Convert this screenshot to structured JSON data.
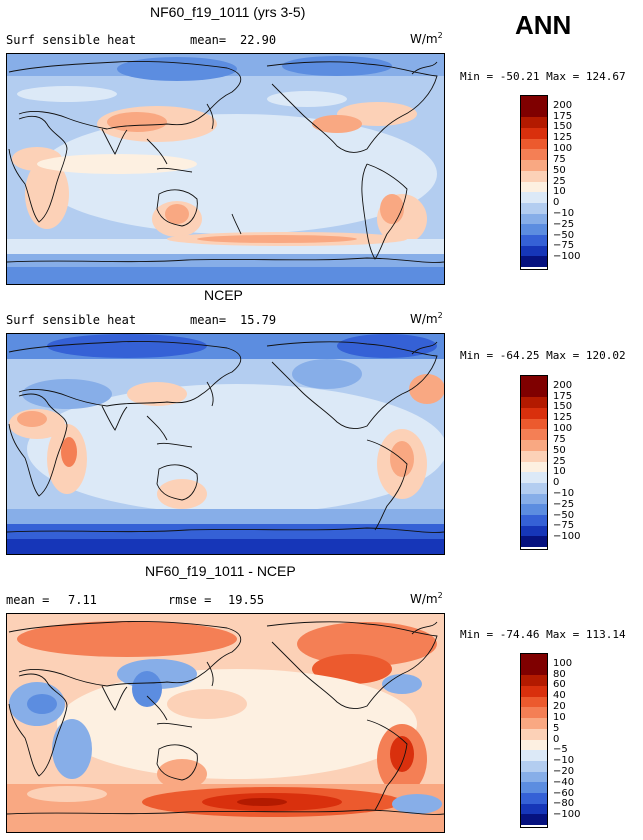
{
  "season": "ANN",
  "panels": [
    {
      "title": "NF60_f19_1011 (yrs 3-5)",
      "variable": "Surf sensible heat",
      "stat1_label": "mean=",
      "stat1_value": "22.90",
      "stat2_label": "",
      "stat2_value": "",
      "units_base": "W/m",
      "units_exp": "2",
      "min_label": "Min =",
      "min_value": "-50.21",
      "max_label": "Max =",
      "max_value": "124.67",
      "colorbar_labels": [
        "200",
        "175",
        "150",
        "125",
        "100",
        "75",
        "50",
        "25",
        "10",
        "0",
        "−10",
        "−25",
        "−50",
        "−75",
        "−100"
      ]
    },
    {
      "title": "NCEP",
      "variable": "Surf sensible heat",
      "stat1_label": "mean=",
      "stat1_value": "15.79",
      "stat2_label": "",
      "stat2_value": "",
      "units_base": "W/m",
      "units_exp": "2",
      "min_label": "Min =",
      "min_value": "-64.25",
      "max_label": "Max =",
      "max_value": "120.02",
      "colorbar_labels": [
        "200",
        "175",
        "150",
        "125",
        "100",
        "75",
        "50",
        "25",
        "10",
        "0",
        "−10",
        "−25",
        "−50",
        "−75",
        "−100"
      ]
    },
    {
      "title": "NF60_f19_1011 - NCEP",
      "variable": "",
      "stat1_label": "mean =",
      "stat1_value": "7.11",
      "stat2_label": "rmse =",
      "stat2_value": "19.55",
      "units_base": "W/m",
      "units_exp": "2",
      "min_label": "Min =",
      "min_value": "-74.46",
      "max_label": "Max =",
      "max_value": "113.14",
      "colorbar_labels": [
        "100",
        "80",
        "60",
        "40",
        "20",
        "10",
        "5",
        "0",
        "−5",
        "−10",
        "−20",
        "−40",
        "−60",
        "−80",
        "−100"
      ]
    }
  ],
  "colors": {
    "scale": [
      "#7f0000",
      "#b31a00",
      "#d9300d",
      "#ec5a2e",
      "#f47f55",
      "#f9a882",
      "#fcd1b7",
      "#fdf0e1",
      "#dce9f7",
      "#b3cdf0",
      "#87aee8",
      "#5c8de0",
      "#3561d6",
      "#1636b8",
      "#06127f"
    ],
    "coast": "#111111"
  }
}
